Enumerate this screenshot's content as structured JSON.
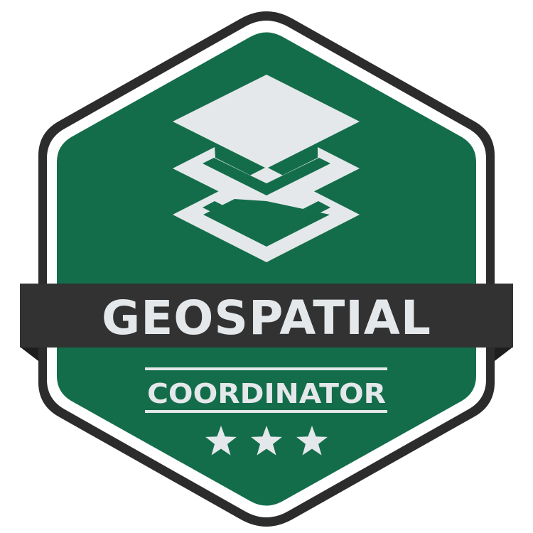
{
  "badge": {
    "title": "GEOSPATIAL",
    "subtitle": "COORDINATOR",
    "stars": 3,
    "icon": "layers-icon",
    "colors": {
      "background": "#ffffff",
      "outline": "#2c2c2c",
      "field": "#136d4b",
      "banner": "#323232",
      "banner_shadow": "#1e1e1e",
      "text": "#e5e8ea"
    }
  }
}
